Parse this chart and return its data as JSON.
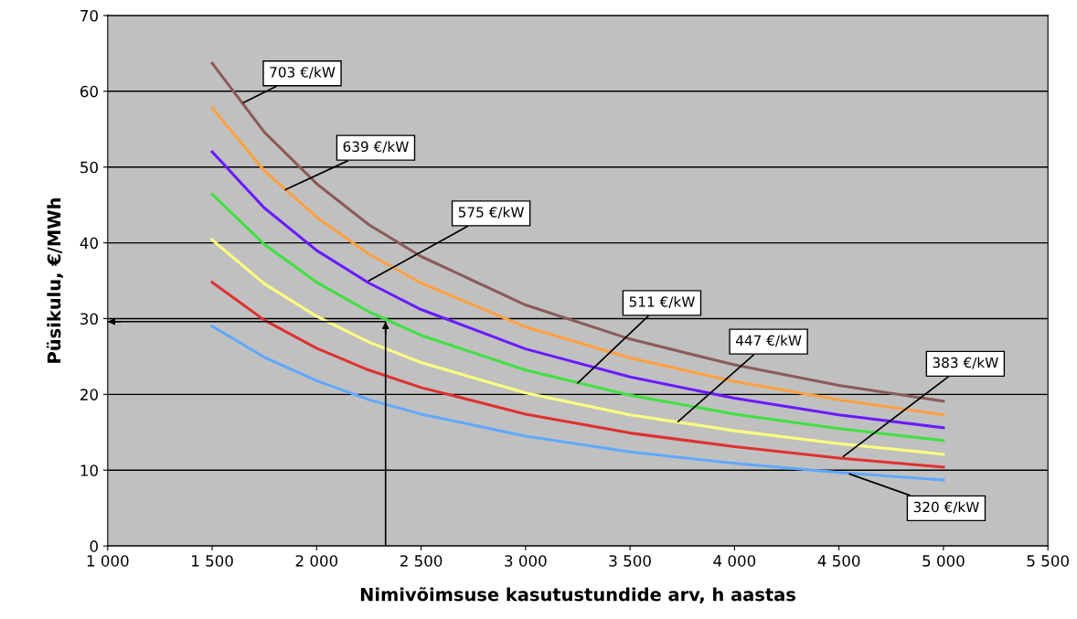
{
  "chart_data": {
    "type": "line",
    "xlabel": "Nimivõimsuse kasutustundide arv, h aastas",
    "ylabel": "Püsikulu, €/MWh",
    "x": [
      1500,
      1750,
      2000,
      2250,
      2500,
      3000,
      3500,
      4000,
      4500,
      5000
    ],
    "series": [
      {
        "color": "#8c5a5a",
        "values": [
          63.7,
          54.6,
          47.8,
          42.4,
          38.2,
          31.8,
          27.3,
          23.9,
          21.2,
          19.1
        ]
      },
      {
        "color": "#ffa040",
        "values": [
          57.8,
          49.5,
          43.4,
          38.5,
          34.7,
          28.9,
          24.8,
          21.7,
          19.3,
          17.3
        ]
      },
      {
        "color": "#6a1aff",
        "values": [
          52.0,
          44.6,
          39.0,
          34.7,
          31.2,
          26.0,
          22.3,
          19.5,
          17.3,
          15.6
        ]
      },
      {
        "color": "#40e040",
        "values": [
          46.4,
          39.8,
          34.8,
          30.9,
          27.8,
          23.2,
          19.9,
          17.4,
          15.5,
          13.9
        ]
      },
      {
        "color": "#ffff80",
        "values": [
          40.4,
          34.6,
          30.3,
          26.9,
          24.2,
          20.2,
          17.3,
          15.2,
          13.5,
          12.1
        ]
      },
      {
        "color": "#e03030",
        "values": [
          34.8,
          29.8,
          26.1,
          23.2,
          20.9,
          17.4,
          14.9,
          13.1,
          11.6,
          10.4
        ]
      },
      {
        "color": "#60a8ff",
        "values": [
          29.0,
          24.9,
          21.8,
          19.3,
          17.4,
          14.5,
          12.4,
          10.9,
          9.7,
          8.7
        ]
      }
    ],
    "annotations": [
      {
        "text": "703 €/kW",
        "x": 1650,
        "y": 58.5
      },
      {
        "text": "639 €/kW",
        "x": 1850,
        "y": 47
      },
      {
        "text": "575 €/kW",
        "x": 2250,
        "y": 35
      },
      {
        "text": "511 €/kW",
        "x": 3250,
        "y": 21.5
      },
      {
        "text": "447 €/kW",
        "x": 3730,
        "y": 16.4
      },
      {
        "text": "383 €/kW",
        "x": 4520,
        "y": 11.8
      },
      {
        "text": "320 €/kW",
        "x": 4550,
        "y": 9.5
      }
    ],
    "ref_lines": [
      {
        "axis": "x",
        "value": 2330,
        "color": "#000000"
      },
      {
        "axis": "y",
        "value": 29.6,
        "color": "#000000"
      }
    ],
    "xlim": [
      1000,
      5500
    ],
    "xticks": [
      {
        "value": 1000,
        "label": "1 000"
      },
      {
        "value": 1500,
        "label": "1 500"
      },
      {
        "value": 2000,
        "label": "2 000"
      },
      {
        "value": 2500,
        "label": "2 500"
      },
      {
        "value": 3000,
        "label": "3 000"
      },
      {
        "value": 3500,
        "label": "3 500"
      },
      {
        "value": 4000,
        "label": "4 000"
      },
      {
        "value": 4500,
        "label": "4 500"
      },
      {
        "value": 5000,
        "label": "5 000"
      },
      {
        "value": 5500,
        "label": "5 500"
      }
    ],
    "ylim": [
      0,
      70
    ],
    "yticks": [
      0,
      10,
      20,
      30,
      40,
      50,
      60,
      70
    ],
    "grid": "y",
    "marker": "none",
    "line_style": "solid",
    "legend": false
  }
}
